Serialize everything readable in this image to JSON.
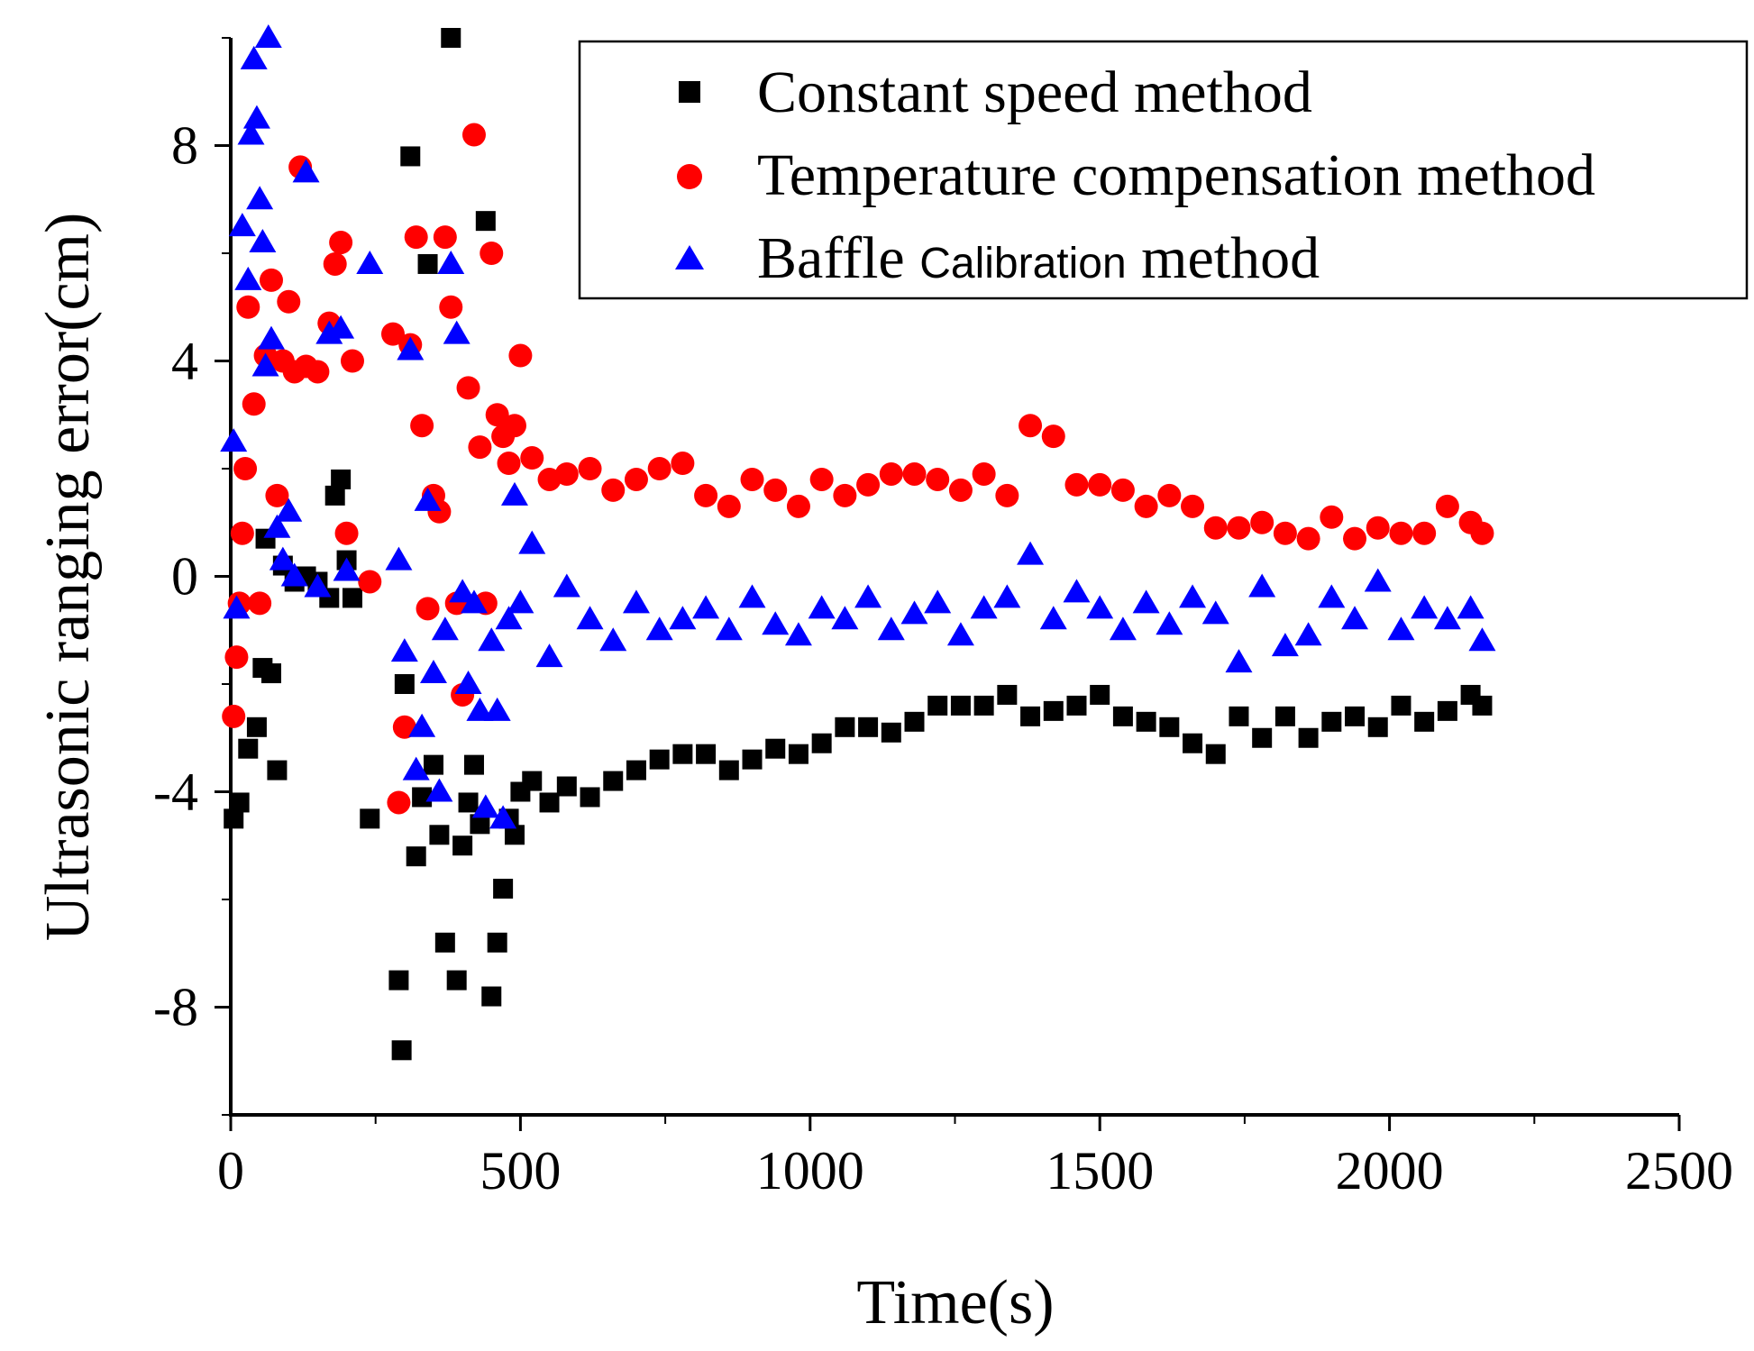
{
  "chart_data": {
    "type": "scatter",
    "title": "",
    "xlabel": "Time(s)",
    "ylabel": "Ultrasonic ranging error(cm)",
    "xlim": [
      0,
      2500
    ],
    "ylim": [
      -10,
      10
    ],
    "xticks": [
      0,
      500,
      1000,
      1500,
      2000,
      2500
    ],
    "xtick_labels": [
      "0",
      "500",
      "1000",
      "1500",
      "2000",
      "2500"
    ],
    "yticks": [
      -8,
      -4,
      0,
      4,
      8
    ],
    "ytick_labels": [
      "-8",
      "-4",
      "0",
      "4",
      "8"
    ],
    "legend_position": "top-right",
    "legend": {
      "constant": "Constant speed method",
      "temperature": "Temperature compensation method",
      "baffle_main": "Baffle ",
      "baffle_small": "Calibration",
      "baffle_end": " method"
    },
    "series": [
      {
        "name": "Constant speed method",
        "marker": "square",
        "color": "#000000",
        "x": [
          5,
          15,
          30,
          45,
          55,
          60,
          70,
          80,
          90,
          110,
          130,
          150,
          170,
          180,
          190,
          200,
          210,
          240,
          290,
          295,
          300,
          310,
          320,
          330,
          340,
          350,
          360,
          370,
          380,
          390,
          400,
          410,
          420,
          430,
          440,
          450,
          460,
          470,
          480,
          490,
          500,
          520,
          550,
          580,
          620,
          660,
          700,
          740,
          780,
          820,
          860,
          900,
          940,
          980,
          1020,
          1060,
          1100,
          1140,
          1180,
          1220,
          1260,
          1300,
          1340,
          1380,
          1420,
          1460,
          1500,
          1540,
          1580,
          1620,
          1660,
          1700,
          1740,
          1780,
          1820,
          1860,
          1900,
          1940,
          1980,
          2020,
          2060,
          2100,
          2140,
          2160
        ],
        "y": [
          -4.5,
          -4.2,
          -3.2,
          -2.8,
          -1.7,
          0.7,
          -1.8,
          -3.6,
          0.2,
          -0.1,
          0.0,
          -0.1,
          -0.4,
          1.5,
          1.8,
          0.3,
          -0.4,
          -4.5,
          -7.5,
          -8.8,
          -2.0,
          7.8,
          -5.2,
          -4.1,
          5.8,
          -3.5,
          -4.8,
          -6.8,
          10.0,
          -7.5,
          -5.0,
          -4.2,
          -3.5,
          -4.6,
          6.6,
          -7.8,
          -6.8,
          -5.8,
          -4.5,
          -4.8,
          -4.0,
          -3.8,
          -4.2,
          -3.9,
          -4.1,
          -3.8,
          -3.6,
          -3.4,
          -3.3,
          -3.3,
          -3.6,
          -3.4,
          -3.2,
          -3.3,
          -3.1,
          -2.8,
          -2.8,
          -2.9,
          -2.7,
          -2.4,
          -2.4,
          -2.4,
          -2.2,
          -2.6,
          -2.5,
          -2.4,
          -2.2,
          -2.6,
          -2.7,
          -2.8,
          -3.1,
          -3.3,
          -2.6,
          -3.0,
          -2.6,
          -3.0,
          -2.7,
          -2.6,
          -2.8,
          -2.4,
          -2.7,
          -2.5,
          -2.2,
          -2.4
        ]
      },
      {
        "name": "Temperature compensation method",
        "marker": "circle",
        "color": "#ff0000",
        "x": [
          5,
          10,
          15,
          20,
          25,
          30,
          40,
          50,
          60,
          70,
          80,
          90,
          100,
          110,
          120,
          130,
          150,
          170,
          180,
          190,
          200,
          210,
          240,
          280,
          290,
          300,
          310,
          320,
          330,
          340,
          350,
          360,
          370,
          380,
          390,
          400,
          410,
          420,
          430,
          440,
          450,
          460,
          470,
          480,
          490,
          500,
          520,
          550,
          580,
          620,
          660,
          700,
          740,
          780,
          820,
          860,
          900,
          940,
          980,
          1020,
          1060,
          1100,
          1140,
          1180,
          1220,
          1260,
          1300,
          1340,
          1380,
          1420,
          1460,
          1500,
          1540,
          1580,
          1620,
          1660,
          1700,
          1740,
          1780,
          1820,
          1860,
          1900,
          1940,
          1980,
          2020,
          2060,
          2100,
          2140,
          2160
        ],
        "y": [
          -2.6,
          -1.5,
          -0.5,
          0.8,
          2.0,
          5.0,
          3.2,
          -0.5,
          4.1,
          5.5,
          1.5,
          4.0,
          5.1,
          3.8,
          7.6,
          3.9,
          3.8,
          4.7,
          5.8,
          6.2,
          0.8,
          4.0,
          -0.1,
          4.5,
          -4.2,
          -2.8,
          4.3,
          6.3,
          2.8,
          -0.6,
          1.5,
          1.2,
          6.3,
          5.0,
          -0.5,
          -2.2,
          3.5,
          8.2,
          2.4,
          -0.5,
          6.0,
          3.0,
          2.6,
          2.1,
          2.8,
          4.1,
          2.2,
          1.8,
          1.9,
          2.0,
          1.6,
          1.8,
          2.0,
          2.1,
          1.5,
          1.3,
          1.8,
          1.6,
          1.3,
          1.8,
          1.5,
          1.7,
          1.9,
          1.9,
          1.8,
          1.6,
          1.9,
          1.5,
          2.8,
          2.6,
          1.7,
          1.7,
          1.6,
          1.3,
          1.5,
          1.3,
          0.9,
          0.9,
          1.0,
          0.8,
          0.7,
          1.1,
          0.7,
          0.9,
          0.8,
          0.8,
          1.3,
          1.0,
          0.8
        ]
      },
      {
        "name": "Baffle Calibration method",
        "marker": "triangle",
        "color": "#0000ff",
        "x": [
          5,
          10,
          20,
          30,
          35,
          40,
          45,
          50,
          55,
          60,
          65,
          70,
          80,
          90,
          100,
          110,
          130,
          150,
          170,
          190,
          200,
          240,
          290,
          300,
          310,
          320,
          330,
          340,
          350,
          360,
          370,
          380,
          390,
          400,
          410,
          420,
          430,
          440,
          450,
          460,
          470,
          480,
          490,
          500,
          520,
          550,
          580,
          620,
          660,
          700,
          740,
          780,
          820,
          860,
          900,
          940,
          980,
          1020,
          1060,
          1100,
          1140,
          1180,
          1220,
          1260,
          1300,
          1340,
          1380,
          1420,
          1460,
          1500,
          1540,
          1580,
          1620,
          1660,
          1700,
          1740,
          1780,
          1820,
          1860,
          1900,
          1940,
          1980,
          2020,
          2060,
          2100,
          2140,
          2160
        ],
        "y": [
          2.5,
          -0.6,
          6.5,
          5.5,
          8.2,
          9.6,
          8.5,
          7.0,
          6.2,
          3.9,
          10.0,
          4.4,
          0.9,
          0.3,
          1.2,
          0.0,
          7.5,
          -0.2,
          4.5,
          4.6,
          0.1,
          5.8,
          0.3,
          -1.4,
          4.2,
          -3.6,
          -2.8,
          1.4,
          -1.8,
          -4.0,
          -1.0,
          5.8,
          4.5,
          -0.3,
          -2.0,
          -0.5,
          -2.5,
          -4.3,
          -1.2,
          -2.5,
          -4.5,
          -0.8,
          1.5,
          -0.5,
          0.6,
          -1.5,
          -0.2,
          -0.8,
          -1.2,
          -0.5,
          -1.0,
          -0.8,
          -0.6,
          -1.0,
          -0.4,
          -0.9,
          -1.1,
          -0.6,
          -0.8,
          -0.4,
          -1.0,
          -0.7,
          -0.5,
          -1.1,
          -0.6,
          -0.4,
          0.4,
          -0.8,
          -0.3,
          -0.6,
          -1.0,
          -0.5,
          -0.9,
          -0.4,
          -0.7,
          -1.6,
          -0.2,
          -1.3,
          -1.1,
          -0.4,
          -0.8,
          -0.1,
          -1.0,
          -0.6,
          -0.8,
          -0.6,
          -1.2
        ]
      }
    ]
  }
}
